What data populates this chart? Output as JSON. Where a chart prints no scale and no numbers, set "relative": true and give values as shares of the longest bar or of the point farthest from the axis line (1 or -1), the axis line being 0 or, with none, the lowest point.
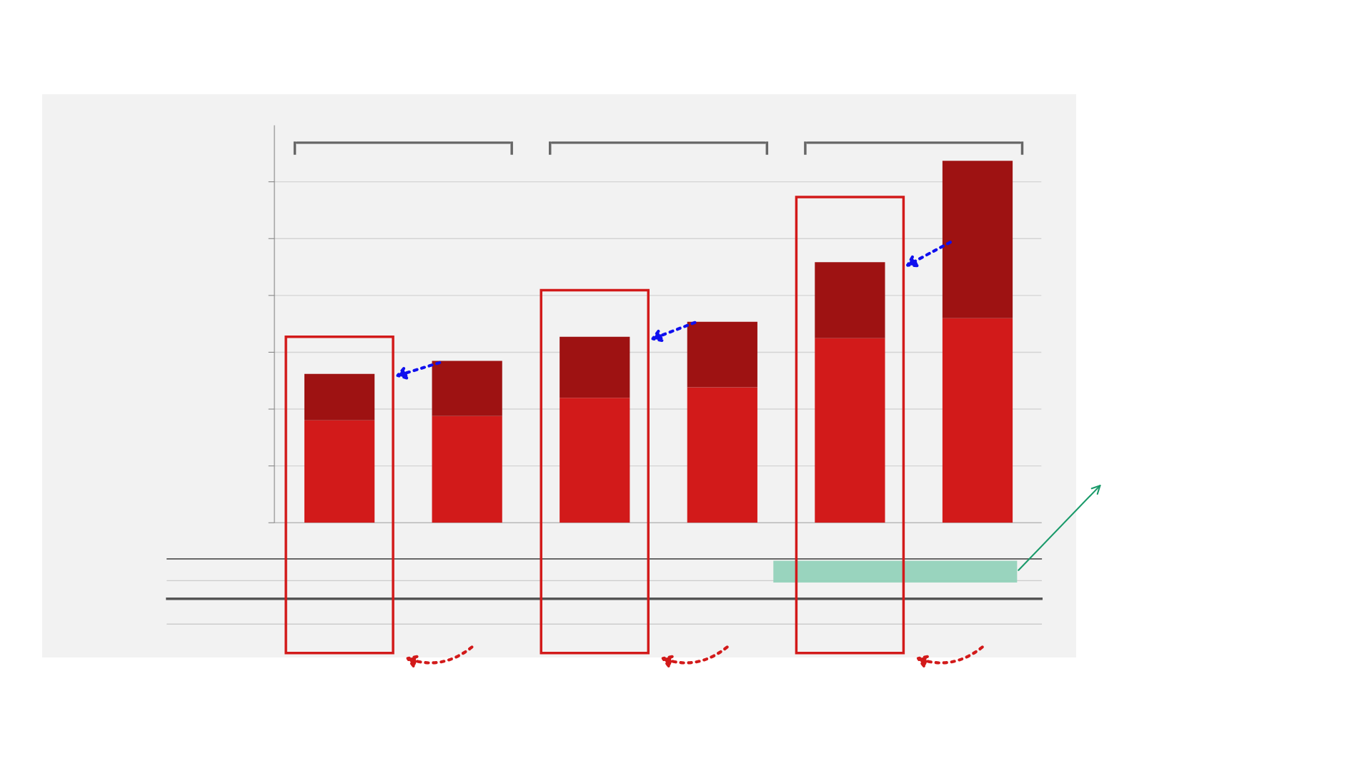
{
  "chart_data": {
    "type": "bar",
    "stacked": true,
    "relative": true,
    "grid": "y",
    "categories": [
      null,
      null,
      null,
      null,
      null,
      null
    ],
    "series": [
      {
        "color": "#d21a1a",
        "values": [
          0.283,
          0.295,
          0.345,
          0.374,
          0.51,
          0.565
        ]
      },
      {
        "color": "#9e1212",
        "values": [
          0.128,
          0.152,
          0.169,
          0.181,
          0.21,
          0.435
        ]
      }
    ]
  }
}
